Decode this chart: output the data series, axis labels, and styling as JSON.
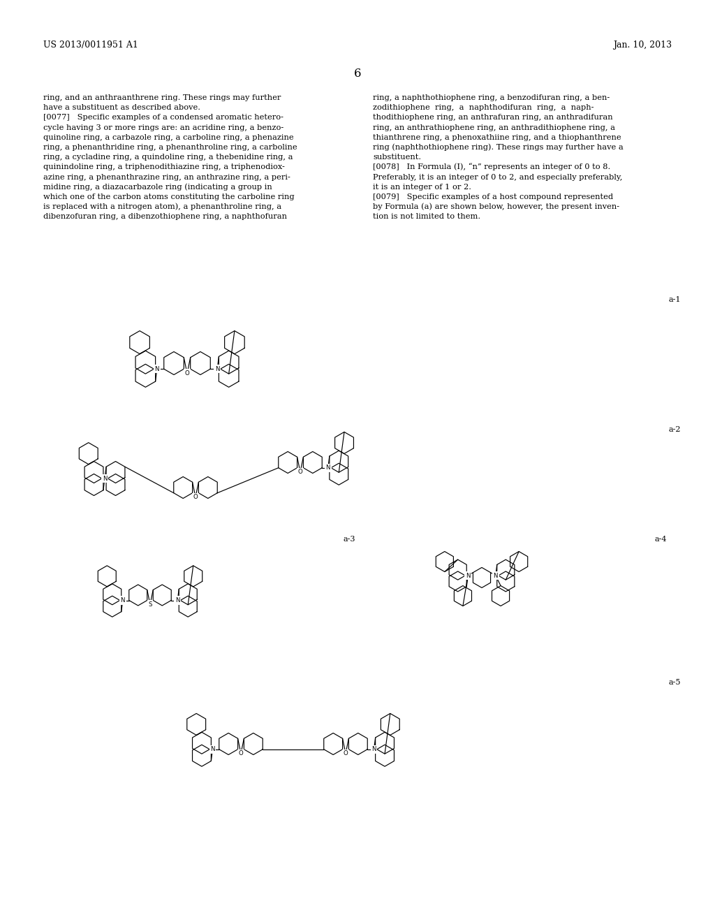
{
  "bg_color": "#ffffff",
  "header_left": "US 2013/0011951 A1",
  "header_right": "Jan. 10, 2013",
  "page_number": "6",
  "col1_lines": [
    "ring, and an anthraanthrene ring. These rings may further",
    "have a substituent as described above.",
    "[0077]   Specific examples of a condensed aromatic hetero-",
    "cycle having 3 or more rings are: an acridine ring, a benzo-",
    "quinoline ring, a carbazole ring, a carboline ring, a phenazine",
    "ring, a phenanthridine ring, a phenanthroline ring, a carboline",
    "ring, a cycladine ring, a quindoline ring, a thebenidine ring, a",
    "quinindoline ring, a triphenodithiazine ring, a triphenodiox-",
    "azine ring, a phenanthrazine ring, an anthrazine ring, a peri-",
    "midine ring, a diazacarbazole ring (indicating a group in",
    "which one of the carbon atoms constituting the carboline ring",
    "is replaced with a nitrogen atom), a phenanthroline ring, a",
    "dibenzofuran ring, a dibenzothiophene ring, a naphthofuran"
  ],
  "col2_lines": [
    "ring, a naphthothiophene ring, a benzodifuran ring, a ben-",
    "zodithiophene  ring,  a  naphthodifuran  ring,  a  naph-",
    "thodithiophene ring, an anthrafuran ring, an anthradifuran",
    "ring, an anthrathiophene ring, an anthradithiophene ring, a",
    "thianthrene ring, a phenoxathiine ring, and a thiophanthrene",
    "ring (naphthothiophene ring). These rings may further have a",
    "substituent.",
    "[0078]   In Formula (I), “n” represents an integer of 0 to 8.",
    "Preferably, it is an integer of 0 to 2, and especially preferably,",
    "it is an integer of 1 or 2.",
    "[0079]   Specific examples of a host compound represented",
    "by Formula (a) are shown below, however, the present inven-",
    "tion is not limited to them."
  ],
  "label_a1": "a-1",
  "label_a2": "a-2",
  "label_a3": "a-3",
  "label_a4": "a-4",
  "label_a5": "a-5"
}
